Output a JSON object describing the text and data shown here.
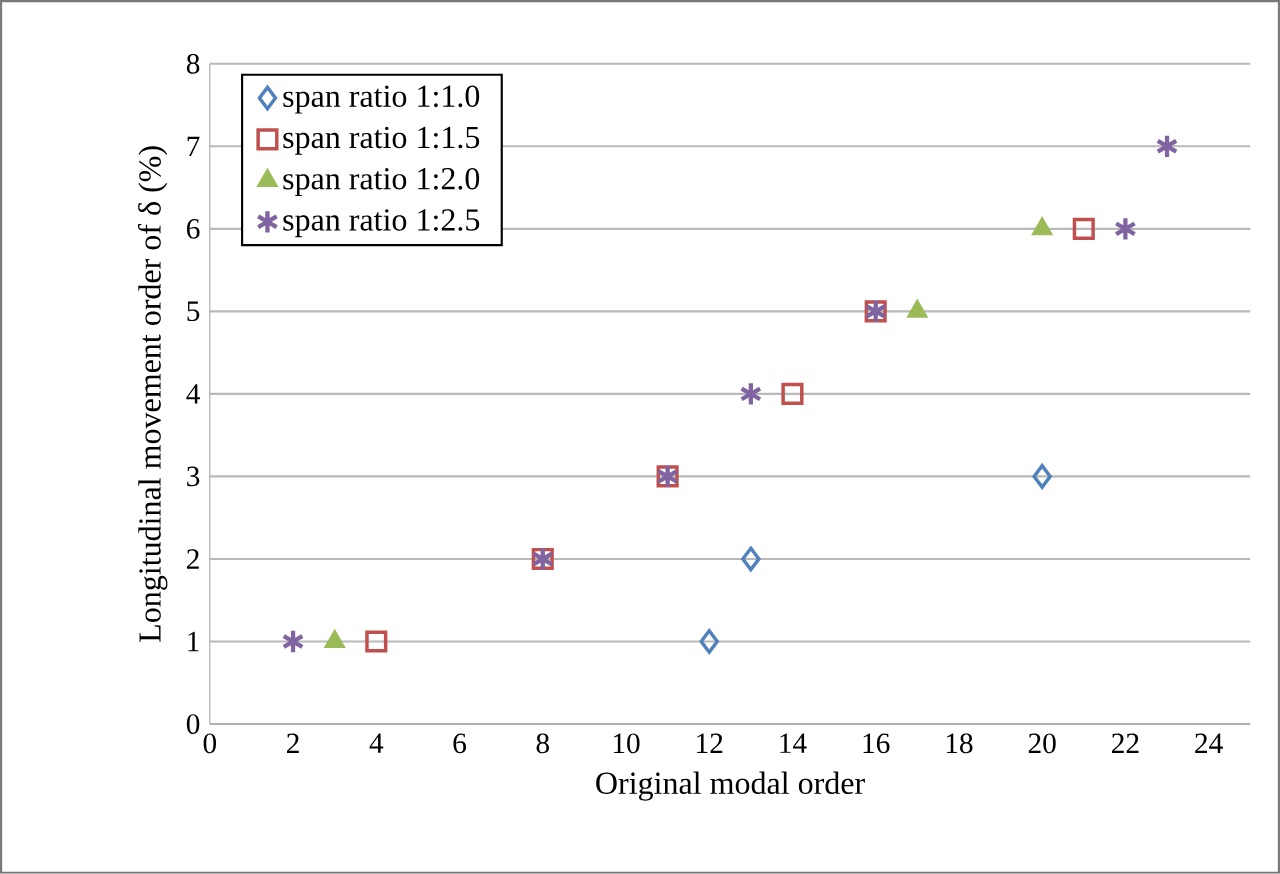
{
  "chart_data": {
    "type": "scatter",
    "xlabel": "Original modal order",
    "ylabel": "Longitudinal movement order of δ (%)",
    "xlim": [
      0,
      25
    ],
    "ylim": [
      0,
      8
    ],
    "xticks": [
      0,
      2,
      4,
      6,
      8,
      10,
      12,
      14,
      16,
      18,
      20,
      22,
      24
    ],
    "yticks": [
      0,
      1,
      2,
      3,
      4,
      5,
      6,
      7,
      8
    ],
    "grid": "y",
    "legend": "top left",
    "series": [
      {
        "name": "span ratio 1:1.0",
        "color": "#4f81bd",
        "marker": "diamond",
        "x": [
          12,
          13,
          20
        ],
        "values": [
          1,
          2,
          3
        ]
      },
      {
        "name": "span ratio 1:1.5",
        "color": "#c0504d",
        "marker": "square",
        "x": [
          4,
          8,
          11,
          14,
          16,
          21
        ],
        "values": [
          1,
          2,
          3,
          4,
          5,
          6
        ]
      },
      {
        "name": "span ratio 1:2.0",
        "color": "#9bbb59",
        "marker": "triangle",
        "x": [
          3,
          17,
          20
        ],
        "values": [
          1,
          5,
          6
        ]
      },
      {
        "name": "span ratio 1:2.5",
        "color": "#8064a2",
        "marker": "cross",
        "x": [
          2,
          8,
          11,
          13,
          16,
          22,
          23
        ],
        "values": [
          1,
          2,
          3,
          4,
          5,
          6,
          7
        ]
      }
    ]
  }
}
